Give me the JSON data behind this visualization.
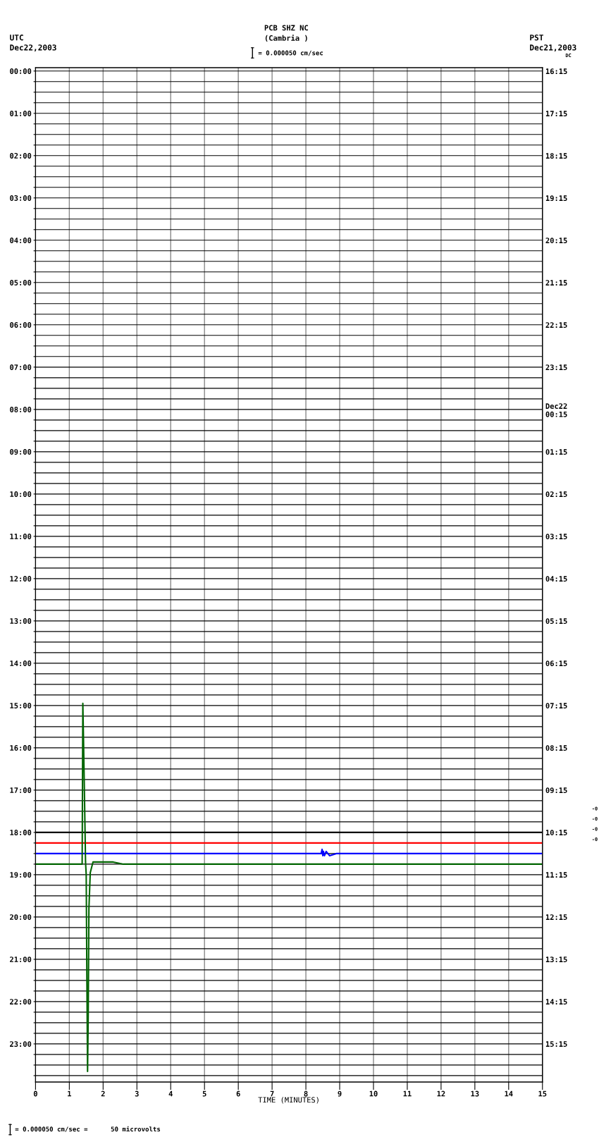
{
  "chart_data": {
    "type": "line",
    "title": "PCB SHZ NC",
    "subtitle": "(Cambria )",
    "xlabel": "TIME (MINUTES)",
    "annotations": [
      "UTC\nDec22,2003",
      "PST\nDec21,2003",
      "DC",
      "= 0.000050 cm/sec",
      "= 0.000050 cm/sec =      50 microvolts",
      "-0",
      "-0",
      "-0",
      "-0"
    ],
    "series": [
      {
        "color": "#000000",
        "x": [
          0,
          5,
          10,
          15
        ],
        "values": [
          18.0,
          18.0,
          18.0,
          18.0
        ]
      },
      {
        "color": "#ff0000",
        "x": [
          0,
          5,
          10,
          15
        ],
        "values": [
          18.25,
          18.25,
          18.25,
          18.25
        ]
      },
      {
        "color": "#0000ff",
        "x": [
          0,
          4,
          8.45,
          8.48,
          8.5,
          8.52,
          8.55,
          8.6,
          8.7,
          8.9,
          12,
          15
        ],
        "values": [
          18.5,
          18.5,
          18.5,
          18.4,
          18.55,
          18.45,
          18.55,
          18.45,
          18.55,
          18.5,
          18.5,
          18.5
        ]
      },
      {
        "color": "#006400",
        "x": [
          0,
          1,
          1.38,
          1.4,
          1.42,
          1.45,
          1.48,
          1.5,
          1.52,
          1.54,
          1.56,
          1.58,
          1.62,
          1.7,
          1.8,
          2.3,
          2.6,
          5,
          10,
          15
        ],
        "values": [
          18.75,
          18.75,
          18.75,
          14.95,
          15.8,
          17.2,
          18.7,
          19.0,
          21.5,
          23.65,
          22.3,
          19.8,
          18.95,
          18.7,
          18.7,
          18.7,
          18.75,
          18.75,
          18.75,
          18.75
        ]
      }
    ],
    "xlim": [
      0,
      15
    ],
    "xticks": [
      0,
      1,
      2,
      3,
      4,
      5,
      6,
      7,
      8,
      9,
      10,
      11,
      12,
      13,
      14,
      15
    ],
    "ylim": [
      23.9,
      -0.08
    ],
    "yticks": [
      {
        "value": 0,
        "label": "00:00"
      },
      {
        "value": 0.25,
        "label": null
      },
      {
        "value": 0.5,
        "label": null
      },
      {
        "value": 0.75,
        "label": null
      },
      {
        "value": 1,
        "label": "01:00"
      },
      {
        "value": 1.25,
        "label": null
      },
      {
        "value": 1.5,
        "label": null
      },
      {
        "value": 1.75,
        "label": null
      },
      {
        "value": 2,
        "label": "02:00"
      },
      {
        "value": 2.25,
        "label": null
      },
      {
        "value": 2.5,
        "label": null
      },
      {
        "value": 2.75,
        "label": null
      },
      {
        "value": 3,
        "label": "03:00"
      },
      {
        "value": 3.25,
        "label": null
      },
      {
        "value": 3.5,
        "label": null
      },
      {
        "value": 3.75,
        "label": null
      },
      {
        "value": 4,
        "label": "04:00"
      },
      {
        "value": 4.25,
        "label": null
      },
      {
        "value": 4.5,
        "label": null
      },
      {
        "value": 4.75,
        "label": null
      },
      {
        "value": 5,
        "label": "05:00"
      },
      {
        "value": 5.25,
        "label": null
      },
      {
        "value": 5.5,
        "label": null
      },
      {
        "value": 5.75,
        "label": null
      },
      {
        "value": 6,
        "label": "06:00"
      },
      {
        "value": 6.25,
        "label": null
      },
      {
        "value": 6.5,
        "label": null
      },
      {
        "value": 6.75,
        "label": null
      },
      {
        "value": 7,
        "label": "07:00"
      },
      {
        "value": 7.25,
        "label": null
      },
      {
        "value": 7.5,
        "label": null
      },
      {
        "value": 7.75,
        "label": null
      },
      {
        "value": 8,
        "label": "08:00"
      },
      {
        "value": 8.25,
        "label": null
      },
      {
        "value": 8.5,
        "label": null
      },
      {
        "value": 8.75,
        "label": null
      },
      {
        "value": 9,
        "label": "09:00"
      },
      {
        "value": 9.25,
        "label": null
      },
      {
        "value": 9.5,
        "label": null
      },
      {
        "value": 9.75,
        "label": null
      },
      {
        "value": 10,
        "label": "10:00"
      },
      {
        "value": 10.25,
        "label": null
      },
      {
        "value": 10.5,
        "label": null
      },
      {
        "value": 10.75,
        "label": null
      },
      {
        "value": 11,
        "label": "11:00"
      },
      {
        "value": 11.25,
        "label": null
      },
      {
        "value": 11.5,
        "label": null
      },
      {
        "value": 11.75,
        "label": null
      },
      {
        "value": 12,
        "label": "12:00"
      },
      {
        "value": 12.25,
        "label": null
      },
      {
        "value": 12.5,
        "label": null
      },
      {
        "value": 12.75,
        "label": null
      },
      {
        "value": 13,
        "label": "13:00"
      },
      {
        "value": 13.25,
        "label": null
      },
      {
        "value": 13.5,
        "label": null
      },
      {
        "value": 13.75,
        "label": null
      },
      {
        "value": 14,
        "label": "14:00"
      },
      {
        "value": 14.25,
        "label": null
      },
      {
        "value": 14.5,
        "label": null
      },
      {
        "value": 14.75,
        "label": null
      },
      {
        "value": 15,
        "label": "15:00"
      },
      {
        "value": 15.25,
        "label": null
      },
      {
        "value": 15.5,
        "label": null
      },
      {
        "value": 15.75,
        "label": null
      },
      {
        "value": 16,
        "label": "16:00"
      },
      {
        "value": 16.25,
        "label": null
      },
      {
        "value": 16.5,
        "label": null
      },
      {
        "value": 16.75,
        "label": null
      },
      {
        "value": 17,
        "label": "17:00"
      },
      {
        "value": 17.25,
        "label": null
      },
      {
        "value": 17.5,
        "label": null
      },
      {
        "value": 17.75,
        "label": null
      },
      {
        "value": 18,
        "label": "18:00"
      },
      {
        "value": 18.25,
        "label": null
      },
      {
        "value": 18.5,
        "label": null
      },
      {
        "value": 18.75,
        "label": null
      },
      {
        "value": 19,
        "label": "19:00"
      },
      {
        "value": 19.25,
        "label": null
      },
      {
        "value": 19.5,
        "label": null
      },
      {
        "value": 19.75,
        "label": null
      },
      {
        "value": 20,
        "label": "20:00"
      },
      {
        "value": 20.25,
        "label": null
      },
      {
        "value": 20.5,
        "label": null
      },
      {
        "value": 20.75,
        "label": null
      },
      {
        "value": 21,
        "label": "21:00"
      },
      {
        "value": 21.25,
        "label": null
      },
      {
        "value": 21.5,
        "label": null
      },
      {
        "value": 21.75,
        "label": null
      },
      {
        "value": 22,
        "label": "22:00"
      },
      {
        "value": 22.25,
        "label": null
      },
      {
        "value": 22.5,
        "label": null
      },
      {
        "value": 22.75,
        "label": null
      },
      {
        "value": 23,
        "label": "23:00"
      },
      {
        "value": 23.25,
        "label": null
      },
      {
        "value": 23.5,
        "label": null
      },
      {
        "value": 23.75,
        "label": null
      }
    ],
    "y2lim": [
      "2003-12-22T16:09",
      "2003-12-21T16:10"
    ],
    "y2ticks": [
      {
        "value": "2003-12-21T16:15",
        "label": "16:15"
      },
      {
        "value": "2003-12-21T17:15",
        "label": "17:15"
      },
      {
        "value": "2003-12-21T18:15",
        "label": "18:15"
      },
      {
        "value": "2003-12-21T19:15",
        "label": "19:15"
      },
      {
        "value": "2003-12-21T20:15",
        "label": "20:15"
      },
      {
        "value": "2003-12-21T21:15",
        "label": "21:15"
      },
      {
        "value": "2003-12-21T22:15",
        "label": "22:15"
      },
      {
        "value": "2003-12-21T23:15",
        "label": "23:15"
      },
      {
        "value": "2003-12-22T00:15",
        "label": "Dec22\n00:15"
      },
      {
        "value": "2003-12-22T01:15",
        "label": "01:15"
      },
      {
        "value": "2003-12-22T02:15",
        "label": "02:15"
      },
      {
        "value": "2003-12-22T03:15",
        "label": "03:15"
      },
      {
        "value": "2003-12-22T04:15",
        "label": "04:15"
      },
      {
        "value": "2003-12-22T05:15",
        "label": "05:15"
      },
      {
        "value": "2003-12-22T06:15",
        "label": "06:15"
      },
      {
        "value": "2003-12-22T07:15",
        "label": "07:15"
      },
      {
        "value": "2003-12-22T08:15",
        "label": "08:15"
      },
      {
        "value": "2003-12-22T09:15",
        "label": "09:15"
      },
      {
        "value": "2003-12-22T10:15",
        "label": "10:15"
      },
      {
        "value": "2003-12-22T11:15",
        "label": "11:15"
      },
      {
        "value": "2003-12-22T12:15",
        "label": "12:15"
      },
      {
        "value": "2003-12-22T13:15",
        "label": "13:15"
      },
      {
        "value": "2003-12-22T14:15",
        "label": "14:15"
      },
      {
        "value": "2003-12-22T15:15",
        "label": "15:15"
      }
    ],
    "grid": true,
    "marker": "none",
    "line_style": "solid"
  }
}
